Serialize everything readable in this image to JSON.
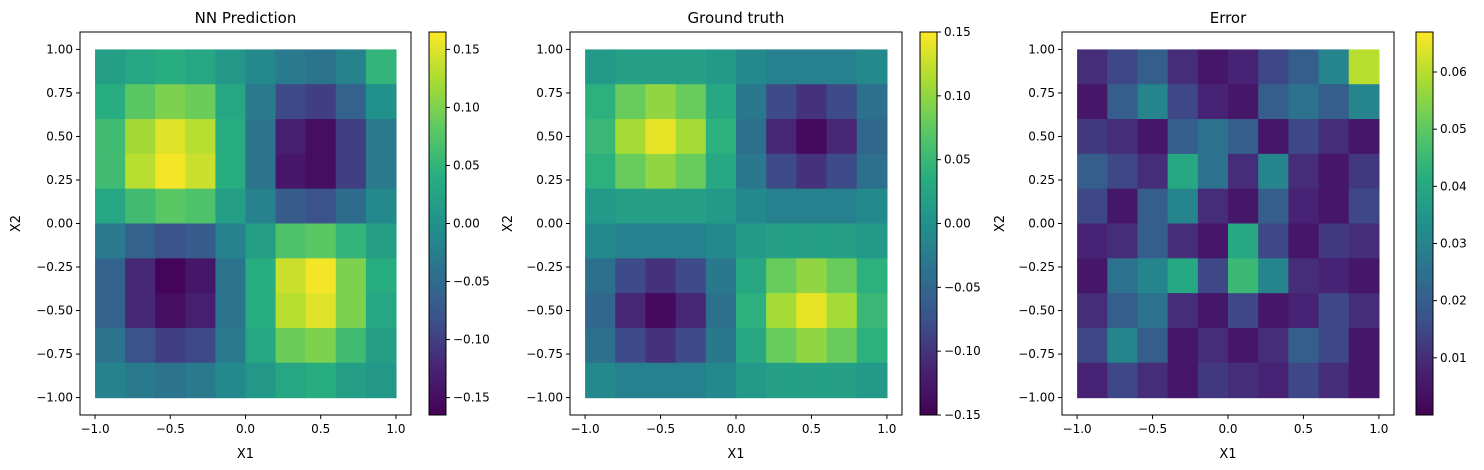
{
  "figure": {
    "colormap": "viridis"
  },
  "chart_data": [
    {
      "type": "heatmap",
      "title": "NN Prediction",
      "xlabel": "X1",
      "ylabel": "X2",
      "xlim": [
        -1.1,
        1.1
      ],
      "ylim": [
        -1.1,
        1.1
      ],
      "xticks": [
        -1.0,
        -0.5,
        0.0,
        0.5,
        1.0
      ],
      "xtick_labels": [
        "−1.0",
        "−0.5",
        "0.0",
        "0.5",
        "1.0"
      ],
      "yticks": [
        -1.0,
        -0.75,
        -0.5,
        -0.25,
        0.0,
        0.25,
        0.5,
        0.75,
        1.0
      ],
      "ytick_labels": [
        "−1.00",
        "−0.75",
        "−0.50",
        "−0.25",
        "0.00",
        "0.25",
        "0.50",
        "0.75",
        "1.00"
      ],
      "field": {
        "x": [
          -0.9,
          -0.7,
          -0.5,
          -0.3,
          -0.1,
          0.1,
          0.3,
          0.5,
          0.7,
          0.9
        ],
        "y": [
          0.9,
          0.7,
          0.5,
          0.3,
          0.1,
          -0.1,
          -0.3,
          -0.5,
          -0.7,
          -0.9
        ],
        "z": [
          [
            0.02,
            0.03,
            0.04,
            0.03,
            0.01,
            -0.01,
            -0.03,
            -0.04,
            -0.02,
            0.05
          ],
          [
            0.04,
            0.08,
            0.1,
            0.09,
            0.03,
            -0.03,
            -0.09,
            -0.1,
            -0.06,
            0.0
          ],
          [
            0.06,
            0.12,
            0.15,
            0.13,
            0.04,
            -0.04,
            -0.13,
            -0.15,
            -0.1,
            -0.03
          ],
          [
            0.06,
            0.13,
            0.16,
            0.14,
            0.04,
            -0.04,
            -0.14,
            -0.15,
            -0.1,
            -0.03
          ],
          [
            0.03,
            0.06,
            0.08,
            0.07,
            0.02,
            -0.02,
            -0.07,
            -0.08,
            -0.05,
            -0.01
          ],
          [
            -0.03,
            -0.06,
            -0.08,
            -0.07,
            -0.02,
            0.02,
            0.07,
            0.08,
            0.05,
            0.02
          ],
          [
            -0.06,
            -0.12,
            -0.16,
            -0.14,
            -0.04,
            0.04,
            0.14,
            0.16,
            0.1,
            0.04
          ],
          [
            -0.06,
            -0.12,
            -0.15,
            -0.13,
            -0.04,
            0.04,
            0.13,
            0.15,
            0.1,
            0.03
          ],
          [
            -0.04,
            -0.08,
            -0.1,
            -0.09,
            -0.03,
            0.03,
            0.09,
            0.1,
            0.06,
            0.02
          ],
          [
            -0.02,
            -0.03,
            -0.04,
            -0.03,
            -0.01,
            0.01,
            0.03,
            0.04,
            0.02,
            0.01
          ]
        ]
      },
      "colorbar": {
        "range": [
          -0.165,
          0.165
        ],
        "ticks": [
          -0.15,
          -0.1,
          -0.05,
          0.0,
          0.05,
          0.1,
          0.15
        ],
        "tick_labels": [
          "−0.15",
          "−0.10",
          "−0.05",
          "0.00",
          "0.05",
          "0.10",
          "0.15"
        ]
      }
    },
    {
      "type": "heatmap",
      "title": "Ground truth",
      "xlabel": "X1",
      "ylabel": "X2",
      "xlim": [
        -1.1,
        1.1
      ],
      "ylim": [
        -1.1,
        1.1
      ],
      "xticks": [
        -1.0,
        -0.5,
        0.0,
        0.5,
        1.0
      ],
      "xtick_labels": [
        "−1.0",
        "−0.5",
        "0.0",
        "0.5",
        "1.0"
      ],
      "yticks": [
        -1.0,
        -0.75,
        -0.5,
        -0.25,
        0.0,
        0.25,
        0.5,
        0.75,
        1.0
      ],
      "ytick_labels": [
        "−1.00",
        "−0.75",
        "−0.50",
        "−0.25",
        "0.00",
        "0.25",
        "0.50",
        "0.75",
        "1.00"
      ],
      "field": {
        "x": [
          -0.9,
          -0.7,
          -0.5,
          -0.3,
          -0.1,
          0.1,
          0.3,
          0.5,
          0.7,
          0.9
        ],
        "y": [
          0.9,
          0.7,
          0.5,
          0.3,
          0.1,
          -0.1,
          -0.3,
          -0.5,
          -0.7,
          -0.9
        ],
        "z": [
          [
            0.01,
            0.02,
            0.02,
            0.02,
            0.01,
            -0.01,
            -0.02,
            -0.02,
            -0.02,
            -0.01
          ],
          [
            0.04,
            0.08,
            0.1,
            0.08,
            0.03,
            -0.03,
            -0.08,
            -0.1,
            -0.08,
            -0.04
          ],
          [
            0.05,
            0.11,
            0.14,
            0.11,
            0.04,
            -0.04,
            -0.11,
            -0.14,
            -0.11,
            -0.05
          ],
          [
            0.04,
            0.08,
            0.1,
            0.08,
            0.03,
            -0.03,
            -0.08,
            -0.1,
            -0.08,
            -0.04
          ],
          [
            0.01,
            0.02,
            0.02,
            0.02,
            0.01,
            -0.01,
            -0.02,
            -0.02,
            -0.02,
            -0.01
          ],
          [
            -0.01,
            -0.02,
            -0.02,
            -0.02,
            -0.01,
            0.01,
            0.02,
            0.02,
            0.02,
            0.01
          ],
          [
            -0.04,
            -0.08,
            -0.1,
            -0.08,
            -0.03,
            0.03,
            0.08,
            0.1,
            0.08,
            0.04
          ],
          [
            -0.05,
            -0.11,
            -0.14,
            -0.11,
            -0.04,
            0.04,
            0.11,
            0.14,
            0.11,
            0.05
          ],
          [
            -0.04,
            -0.08,
            -0.1,
            -0.08,
            -0.03,
            0.03,
            0.08,
            0.1,
            0.08,
            0.04
          ],
          [
            -0.01,
            -0.02,
            -0.02,
            -0.02,
            -0.01,
            0.01,
            0.02,
            0.02,
            0.02,
            0.01
          ]
        ]
      },
      "colorbar": {
        "range": [
          -0.15,
          0.15
        ],
        "ticks": [
          -0.15,
          -0.1,
          -0.05,
          0.0,
          0.05,
          0.1,
          0.15
        ],
        "tick_labels": [
          "−0.15",
          "−0.10",
          "−0.05",
          "0.00",
          "0.05",
          "0.10",
          "0.15"
        ]
      }
    },
    {
      "type": "heatmap",
      "title": "Error",
      "xlabel": "X1",
      "ylabel": "X2",
      "xlim": [
        -1.1,
        1.1
      ],
      "ylim": [
        -1.1,
        1.1
      ],
      "xticks": [
        -1.0,
        -0.5,
        0.0,
        0.5,
        1.0
      ],
      "xtick_labels": [
        "−1.0",
        "−0.5",
        "0.0",
        "0.5",
        "1.0"
      ],
      "yticks": [
        -1.0,
        -0.75,
        -0.5,
        -0.25,
        0.0,
        0.25,
        0.5,
        0.75,
        1.0
      ],
      "ytick_labels": [
        "−1.00",
        "−0.75",
        "−0.50",
        "−0.25",
        "0.00",
        "0.25",
        "0.50",
        "0.75",
        "1.00"
      ],
      "field": {
        "x": [
          -0.9,
          -0.7,
          -0.5,
          -0.3,
          -0.1,
          0.1,
          0.3,
          0.5,
          0.7,
          0.9
        ],
        "y": [
          0.9,
          0.7,
          0.5,
          0.3,
          0.1,
          -0.1,
          -0.3,
          -0.5,
          -0.7,
          -0.9
        ],
        "z": [
          [
            0.01,
            0.015,
            0.02,
            0.01,
            0.005,
            0.008,
            0.015,
            0.02,
            0.03,
            0.06
          ],
          [
            0.005,
            0.02,
            0.03,
            0.015,
            0.008,
            0.005,
            0.02,
            0.025,
            0.02,
            0.03
          ],
          [
            0.012,
            0.01,
            0.005,
            0.02,
            0.025,
            0.02,
            0.005,
            0.015,
            0.01,
            0.005
          ],
          [
            0.02,
            0.015,
            0.01,
            0.04,
            0.025,
            0.01,
            0.03,
            0.01,
            0.005,
            0.012
          ],
          [
            0.015,
            0.005,
            0.02,
            0.03,
            0.01,
            0.005,
            0.02,
            0.008,
            0.005,
            0.015
          ],
          [
            0.008,
            0.01,
            0.02,
            0.01,
            0.005,
            0.04,
            0.015,
            0.005,
            0.012,
            0.01
          ],
          [
            0.005,
            0.025,
            0.03,
            0.04,
            0.015,
            0.045,
            0.03,
            0.01,
            0.008,
            0.005
          ],
          [
            0.01,
            0.02,
            0.025,
            0.01,
            0.005,
            0.015,
            0.005,
            0.008,
            0.015,
            0.01
          ],
          [
            0.015,
            0.03,
            0.02,
            0.005,
            0.01,
            0.005,
            0.01,
            0.02,
            0.015,
            0.005
          ],
          [
            0.008,
            0.015,
            0.01,
            0.005,
            0.012,
            0.01,
            0.008,
            0.015,
            0.01,
            0.005
          ]
        ]
      },
      "colorbar": {
        "range": [
          0.0,
          0.067
        ],
        "ticks": [
          0.01,
          0.02,
          0.03,
          0.04,
          0.05,
          0.06
        ],
        "tick_labels": [
          "0.01",
          "0.02",
          "0.03",
          "0.04",
          "0.05",
          "0.06"
        ]
      }
    }
  ]
}
